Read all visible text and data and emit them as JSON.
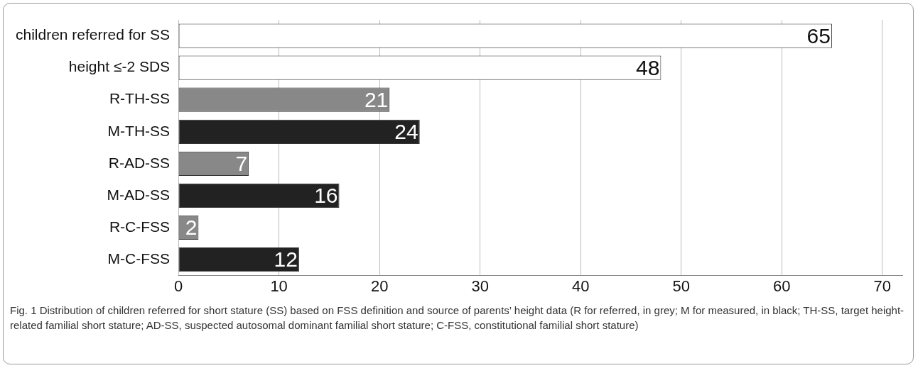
{
  "chart_data": {
    "type": "bar",
    "orientation": "horizontal",
    "categories": [
      "children referred for SS",
      "height ≤-2 SDS",
      "R-TH-SS",
      "M-TH-SS",
      "R-AD-SS",
      "M-AD-SS",
      "R-C-FSS",
      "M-C-FSS"
    ],
    "values": [
      65,
      48,
      21,
      24,
      7,
      16,
      2,
      12
    ],
    "colors": [
      "#ffffff",
      "#ffffff",
      "#888888",
      "#222222",
      "#888888",
      "#222222",
      "#888888",
      "#222222"
    ],
    "xlim": [
      0,
      72
    ],
    "xticks": [
      0,
      10,
      20,
      30,
      40,
      50,
      60,
      70
    ],
    "grid": "x",
    "legend": false,
    "data_labels": true,
    "annotations": [
      "Fig. 1 Distribution of children referred for short stature (SS) based on FSS definition and source of parents’ height data (R for referred, in grey; M for measured, in black; TH-SS, target height-related familial short stature; AD-SS, suspected autosomal dominant familial short stature; C-FSS, constitutional familial short stature)"
    ]
  }
}
